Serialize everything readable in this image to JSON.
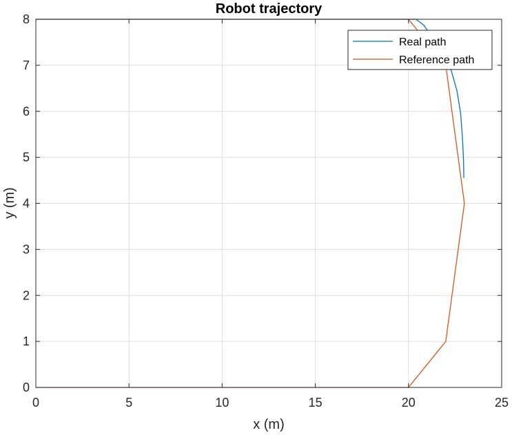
{
  "chart_data": {
    "type": "line",
    "title": "Robot trajectory",
    "xlabel": "x (m)",
    "ylabel": "y (m)",
    "xlim": [
      0,
      25
    ],
    "ylim": [
      0,
      8
    ],
    "xticks": [
      0,
      5,
      10,
      15,
      20,
      25
    ],
    "yticks": [
      0,
      1,
      2,
      3,
      4,
      5,
      6,
      7,
      8
    ],
    "grid": true,
    "legend_position": "top-right",
    "series": [
      {
        "name": "Real path",
        "color": "#0072BD",
        "x": [
          0,
          20.0,
          20.4,
          20.8,
          21.3,
          21.8,
          22.3,
          22.6,
          22.8,
          22.9,
          22.95,
          22.97
        ],
        "y": [
          8,
          8.0,
          8.0,
          7.88,
          7.6,
          7.25,
          6.88,
          6.45,
          5.95,
          5.4,
          4.95,
          4.55
        ]
      },
      {
        "name": "Reference path",
        "color": "#D95319",
        "x": [
          0,
          20,
          22,
          23,
          22,
          20,
          0
        ],
        "y": [
          0,
          0,
          1,
          4,
          7,
          8,
          8
        ]
      }
    ]
  }
}
